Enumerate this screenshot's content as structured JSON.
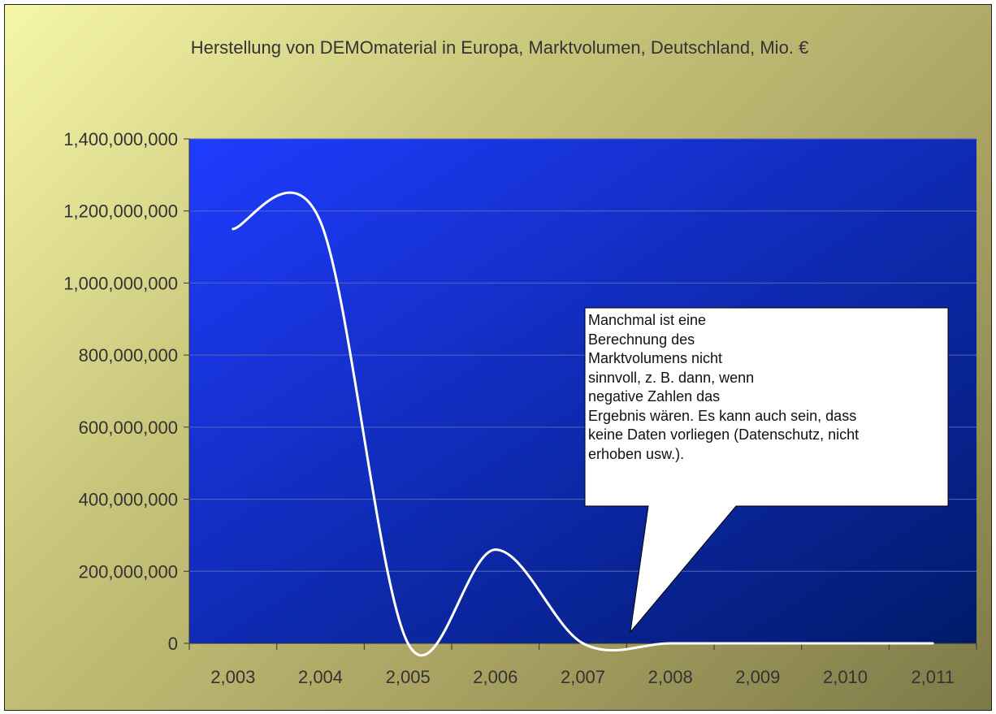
{
  "colors": {
    "plot_top": "#1f3cff",
    "plot_bottom": "#001a6a",
    "line": "#ffffff",
    "callout_bg": "#ffffff"
  },
  "callout": {
    "lines": [
      "Manchmal ist eine",
      "Berechnung des",
      "Marktvolumens nicht",
      "sinnvoll, z. B. dann, wenn",
      "negative Zahlen das",
      "Ergebnis wären. Es kann auch sein, dass",
      "keine Daten vorliegen (Datenschutz, nicht",
      "erhoben usw.)."
    ]
  },
  "chart_data": {
    "type": "line",
    "title": "Herstellung von DEMOmaterial in Europa, Marktvolumen, Deutschland, Mio. €",
    "xlabel": "",
    "ylabel": "",
    "categories": [
      "2,003",
      "2,004",
      "2,005",
      "2,006",
      "2,007",
      "2,008",
      "2,009",
      "2,010",
      "2,011"
    ],
    "series": [
      {
        "values": [
          1150000000,
          1170000000,
          0,
          260000000,
          0,
          0,
          0,
          0,
          0
        ]
      }
    ],
    "smooth": true,
    "ylim": [
      0,
      1400000000
    ],
    "yticks": [
      0,
      200000000,
      400000000,
      600000000,
      800000000,
      1000000000,
      1200000000,
      1400000000
    ],
    "ytick_labels": [
      "0",
      "200,000,000",
      "400,000,000",
      "600,000,000",
      "800,000,000",
      "1,000,000,000",
      "1,200,000,000",
      "1,400,000,000"
    ],
    "grid": true,
    "legend": "none"
  }
}
